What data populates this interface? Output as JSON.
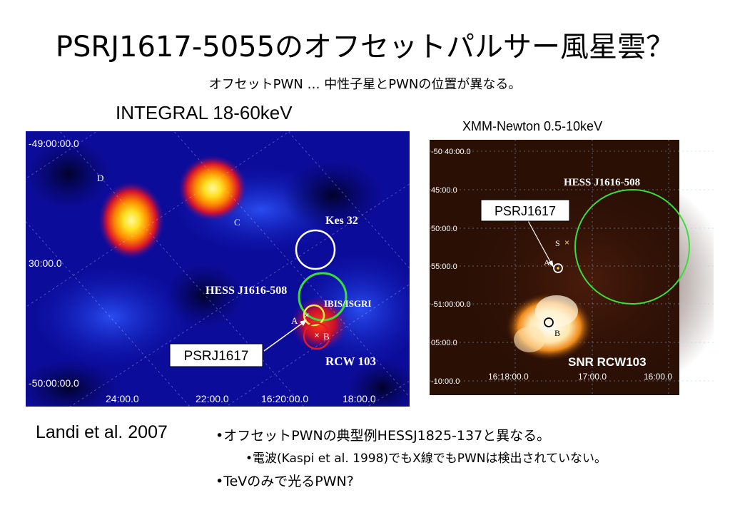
{
  "slide": {
    "title": "PSRJ1617-5055のオフセットパルサー風星雲？",
    "subtitle": "オフセットPWN … 中性子星とPWNの位置が異なる。",
    "citation": "Landi et al. 2007",
    "bullets": [
      "•オフセットPWNの典型例HESSJ1825-137と異なる。",
      "•電波(Kaspi et al. 1998)でもX線でもPWNは検出されていない。",
      "•TeVのみで光るPWN?"
    ]
  },
  "integral_panel": {
    "label": "INTEGRAL 18-60keV",
    "dec_ticks": [
      "-49:00:00.0",
      "30:00.0",
      "-50:00:00.0"
    ],
    "ra_ticks": [
      "24:00.0",
      "22:00.0",
      "16:20:00.0",
      "18:00.0"
    ],
    "source_labels": {
      "d": "D",
      "c": "C",
      "kes32": "Kes 32",
      "hess": "HESS J1616-508",
      "ibis": "IBIS/ISGRI",
      "a": "A",
      "b": "B",
      "rcw": "RCW 103"
    },
    "callout": "PSRJ1617",
    "colors": {
      "background": "#0c0c9a",
      "hot": "#ffe94a",
      "circle_hess": "#3ddc3d",
      "circle_kes": "#ffffff",
      "circle_b": "#e11a2a"
    }
  },
  "xmm_panel": {
    "label": "XMM-Newton 0.5-10keV",
    "dec_ticks": [
      "-50 40:00.0",
      "45:00.0",
      "50:00.0",
      "55:00.0",
      "-51:00:00.0",
      "05:00.0",
      "-10:00.0"
    ],
    "ra_ticks": [
      "16:18:00.0",
      "17:00.0",
      "16:00.0"
    ],
    "source_labels": {
      "hess": "HESS J1616-508",
      "s": "S",
      "a": "A",
      "b": "B",
      "snr": "SNR RCW103"
    },
    "callout": "PSRJ1617",
    "colors": {
      "background": "#2a0f05",
      "circle_hess": "#3ddc3d"
    }
  }
}
